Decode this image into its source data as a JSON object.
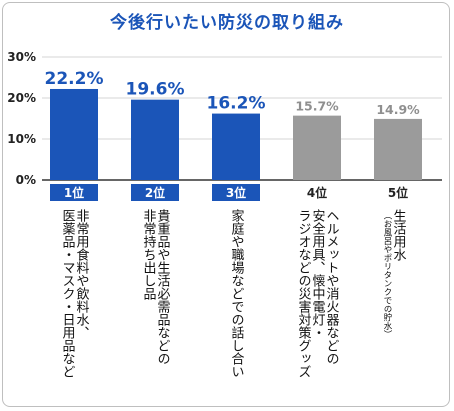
{
  "title": "今後行いたい防災の取り組み",
  "chart_data": {
    "type": "bar",
    "title": "今後行いたい防災の取り組み",
    "ylim": [
      0,
      30
    ],
    "yticks": [
      "0%",
      "10%",
      "20%",
      "30%"
    ],
    "grid": true,
    "categories": [
      {
        "rank": "1位",
        "lines": [
          "非常用食料や飲料水、",
          "医薬品・マスク・日用品など"
        ],
        "sub": ""
      },
      {
        "rank": "2位",
        "lines": [
          "貴重品や生活必需品などの",
          "非常持ち出し品"
        ],
        "sub": ""
      },
      {
        "rank": "3位",
        "lines": [
          "家庭や職場などでの話し合い"
        ],
        "sub": ""
      },
      {
        "rank": "4位",
        "lines": [
          "ヘルメットや消火器などの",
          "安全用具、懐中電灯・",
          "ラジオなどの災害対策グッズ"
        ],
        "sub": ""
      },
      {
        "rank": "5位",
        "lines": [
          "生活用水"
        ],
        "sub": "（お風呂やポリタンクでの貯水）"
      }
    ],
    "values": [
      22.2,
      19.6,
      16.2,
      15.7,
      14.9
    ],
    "value_labels": [
      "22.2%",
      "19.6%",
      "16.2%",
      "15.7%",
      "14.9%"
    ],
    "highlight_top": 3,
    "colors": {
      "highlight": "#1b55b8",
      "other": "#9b9b9b",
      "title": "#1b55b8"
    }
  }
}
